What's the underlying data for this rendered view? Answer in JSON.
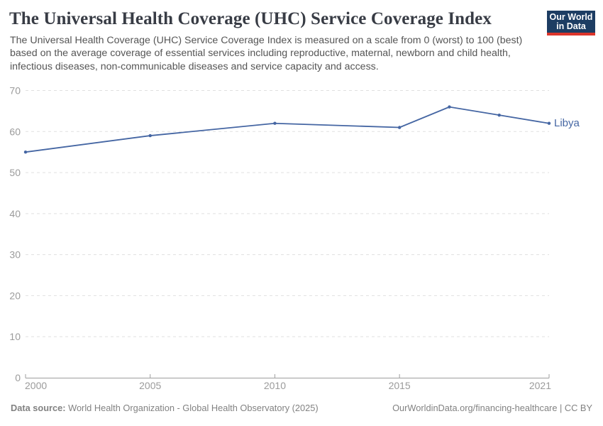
{
  "header": {
    "title": "The Universal Health Coverage (UHC) Service Coverage Index",
    "subtitle": "The Universal Health Coverage (UHC) Service Coverage Index is measured on a scale from 0 (worst) to 100 (best) based on the average coverage of essential services including reproductive, maternal, newborn and child health, infectious diseases, non-communicable diseases and service capacity and access.",
    "logo": {
      "line1": "Our World",
      "line2": "in Data"
    }
  },
  "chart_data": {
    "type": "line",
    "title": "The Universal Health Coverage (UHC) Service Coverage Index",
    "xlabel": "",
    "ylabel": "",
    "xlim": [
      2000,
      2021
    ],
    "ylim": [
      0,
      70
    ],
    "x_ticks": [
      2000,
      2005,
      2010,
      2015,
      2021
    ],
    "y_ticks": [
      0,
      10,
      20,
      30,
      40,
      50,
      60,
      70
    ],
    "grid": "dashed-horizontal",
    "legend_position": "end-of-line-label",
    "series": [
      {
        "name": "Libya",
        "color": "#4566a3",
        "x": [
          2000,
          2005,
          2010,
          2015,
          2017,
          2019,
          2021
        ],
        "values": [
          55,
          59,
          62,
          61,
          66,
          64,
          62
        ]
      }
    ]
  },
  "footer": {
    "data_source_label": "Data source:",
    "data_source": "World Health Organization - Global Health Observatory (2025)",
    "attribution": "OurWorldinData.org/financing-healthcare | CC BY"
  },
  "colors": {
    "series_blue": "#4566a3",
    "gridline": "#e0e0e0",
    "axis": "#9e9e9e",
    "tick_label": "#9b9b9b",
    "title": "#383c45",
    "subtitle": "#555555",
    "footer": "#828282",
    "logo_navy": "#1d3d63",
    "logo_red": "#dc352b"
  }
}
